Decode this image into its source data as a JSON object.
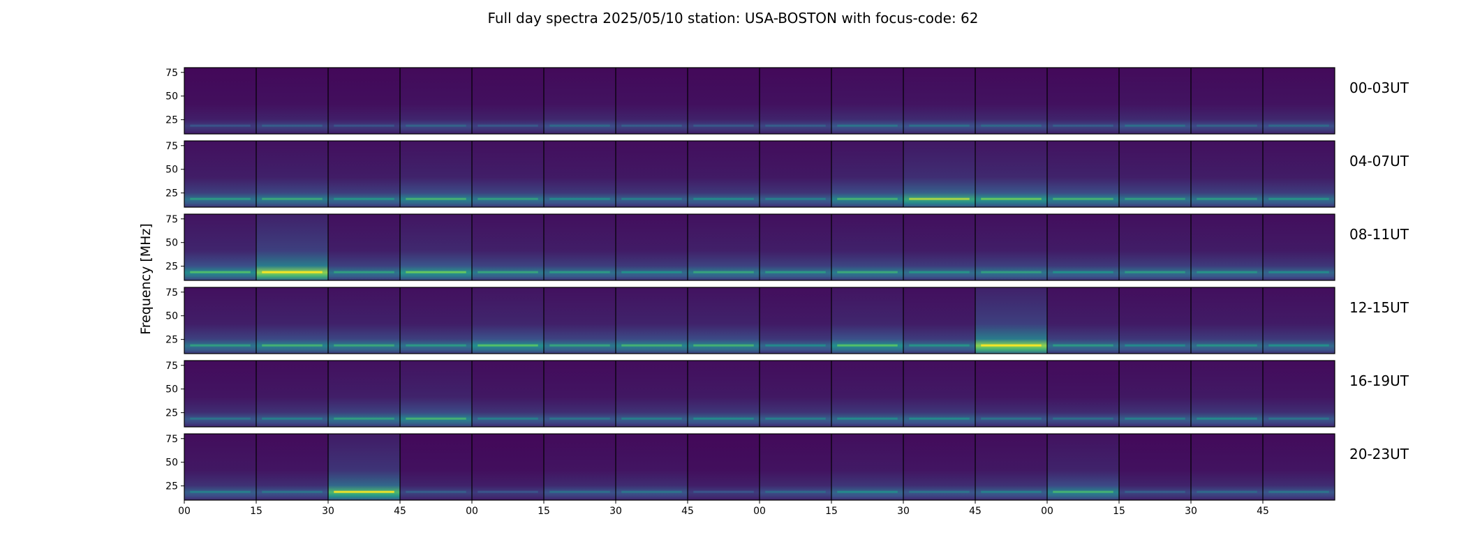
{
  "chart_data": {
    "type": "heatmap",
    "title": "Full day spectra 2025/05/10 station: USA-BOSTON with focus-code: 62",
    "ylabel": "Frequency [MHz]",
    "xlabel": "",
    "ylim": [
      10,
      80
    ],
    "y_ticks": [
      "25",
      "50",
      "75"
    ],
    "x_ticks": [
      "00",
      "15",
      "30",
      "45",
      "00",
      "15",
      "30",
      "45",
      "00",
      "15",
      "30",
      "45",
      "00",
      "15",
      "30",
      "45"
    ],
    "colormap": [
      "#440154",
      "#3b528b",
      "#21918c",
      "#5ec962",
      "#fde725"
    ],
    "rows": [
      {
        "label": "00-03UT",
        "intensity": [
          0.12,
          0.14,
          0.12,
          0.15,
          0.13,
          0.16,
          0.14,
          0.13,
          0.14,
          0.18,
          0.17,
          0.16,
          0.14,
          0.17,
          0.15,
          0.16
        ]
      },
      {
        "label": "04-07UT",
        "intensity": [
          0.25,
          0.28,
          0.24,
          0.3,
          0.26,
          0.22,
          0.2,
          0.22,
          0.2,
          0.3,
          0.4,
          0.35,
          0.3,
          0.26,
          0.25,
          0.24
        ]
      },
      {
        "label": "08-11UT",
        "intensity": [
          0.32,
          0.55,
          0.26,
          0.35,
          0.27,
          0.25,
          0.23,
          0.27,
          0.25,
          0.28,
          0.24,
          0.26,
          0.23,
          0.25,
          0.24,
          0.22
        ]
      },
      {
        "label": "12-15UT",
        "intensity": [
          0.26,
          0.3,
          0.28,
          0.25,
          0.33,
          0.27,
          0.3,
          0.3,
          0.22,
          0.33,
          0.24,
          0.55,
          0.25,
          0.22,
          0.24,
          0.23
        ]
      },
      {
        "label": "16-19UT",
        "intensity": [
          0.18,
          0.2,
          0.26,
          0.3,
          0.2,
          0.18,
          0.2,
          0.22,
          0.2,
          0.22,
          0.22,
          0.18,
          0.17,
          0.2,
          0.22,
          0.18
        ]
      },
      {
        "label": "20-23UT",
        "intensity": [
          0.2,
          0.18,
          0.45,
          0.14,
          0.12,
          0.17,
          0.18,
          0.12,
          0.16,
          0.22,
          0.18,
          0.2,
          0.3,
          0.14,
          0.16,
          0.18
        ]
      }
    ]
  }
}
